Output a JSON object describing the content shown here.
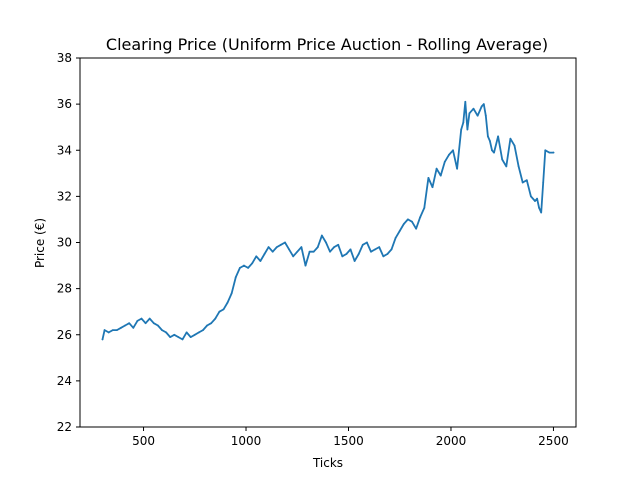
{
  "chart_data": {
    "type": "line",
    "title": "Clearing Price (Uniform Price Auction - Rolling Average)",
    "xlabel": "Ticks",
    "ylabel": "Price (€)",
    "xlim": [
      190,
      2610
    ],
    "ylim": [
      22,
      38
    ],
    "xticks": [
      500,
      1000,
      1500,
      2000,
      2500
    ],
    "yticks": [
      22,
      24,
      26,
      28,
      30,
      32,
      34,
      36,
      38
    ],
    "xtick_labels": [
      "500",
      "1000",
      "1500",
      "2000",
      "2500"
    ],
    "ytick_labels": [
      "22",
      "24",
      "26",
      "28",
      "30",
      "32",
      "34",
      "36",
      "38"
    ],
    "grid": false,
    "legend": "none",
    "series": [
      {
        "color": "#1f77b4",
        "x": [
          300,
          310,
          330,
          350,
          370,
          390,
          410,
          430,
          450,
          470,
          490,
          510,
          530,
          550,
          570,
          590,
          610,
          630,
          650,
          670,
          690,
          710,
          730,
          750,
          770,
          790,
          810,
          830,
          850,
          870,
          890,
          910,
          930,
          950,
          970,
          990,
          1010,
          1030,
          1050,
          1070,
          1090,
          1110,
          1130,
          1150,
          1170,
          1190,
          1210,
          1230,
          1250,
          1270,
          1290,
          1310,
          1330,
          1350,
          1370,
          1390,
          1410,
          1430,
          1450,
          1470,
          1490,
          1510,
          1530,
          1550,
          1570,
          1590,
          1610,
          1630,
          1650,
          1670,
          1690,
          1710,
          1730,
          1750,
          1770,
          1790,
          1810,
          1830,
          1850,
          1870,
          1890,
          1910,
          1930,
          1950,
          1970,
          1990,
          2010,
          2030,
          2050,
          2060,
          2070,
          2080,
          2090,
          2110,
          2130,
          2150,
          2160,
          2170,
          2180,
          2190,
          2200,
          2210,
          2230,
          2250,
          2270,
          2290,
          2310,
          2330,
          2350,
          2370,
          2390,
          2410,
          2420,
          2430,
          2440,
          2450,
          2460,
          2480,
          2500
        ],
        "y": [
          25.8,
          26.2,
          26.1,
          26.2,
          26.2,
          26.3,
          26.4,
          26.5,
          26.3,
          26.6,
          26.7,
          26.5,
          26.7,
          26.5,
          26.4,
          26.2,
          26.1,
          25.9,
          26.0,
          25.9,
          25.8,
          26.1,
          25.9,
          26.0,
          26.1,
          26.2,
          26.4,
          26.5,
          26.7,
          27.0,
          27.1,
          27.4,
          27.8,
          28.5,
          28.9,
          29.0,
          28.9,
          29.1,
          29.4,
          29.2,
          29.5,
          29.8,
          29.6,
          29.8,
          29.9,
          30.0,
          29.7,
          29.4,
          29.6,
          29.8,
          29.0,
          29.6,
          29.6,
          29.8,
          30.3,
          30.0,
          29.6,
          29.8,
          29.9,
          29.4,
          29.5,
          29.7,
          29.2,
          29.5,
          29.9,
          30.0,
          29.6,
          29.7,
          29.8,
          29.4,
          29.5,
          29.7,
          30.2,
          30.5,
          30.8,
          31.0,
          30.9,
          30.6,
          31.1,
          31.5,
          32.8,
          32.4,
          33.2,
          32.9,
          33.5,
          33.8,
          34.0,
          33.2,
          34.9,
          35.2,
          36.1,
          34.9,
          35.6,
          35.8,
          35.5,
          35.9,
          36.0,
          35.5,
          34.6,
          34.4,
          34.0,
          33.9,
          34.6,
          33.6,
          33.3,
          34.5,
          34.2,
          33.3,
          32.6,
          32.7,
          32.0,
          31.8,
          31.9,
          31.5,
          31.3,
          32.6,
          34.0,
          33.9,
          33.9
        ]
      }
    ]
  }
}
